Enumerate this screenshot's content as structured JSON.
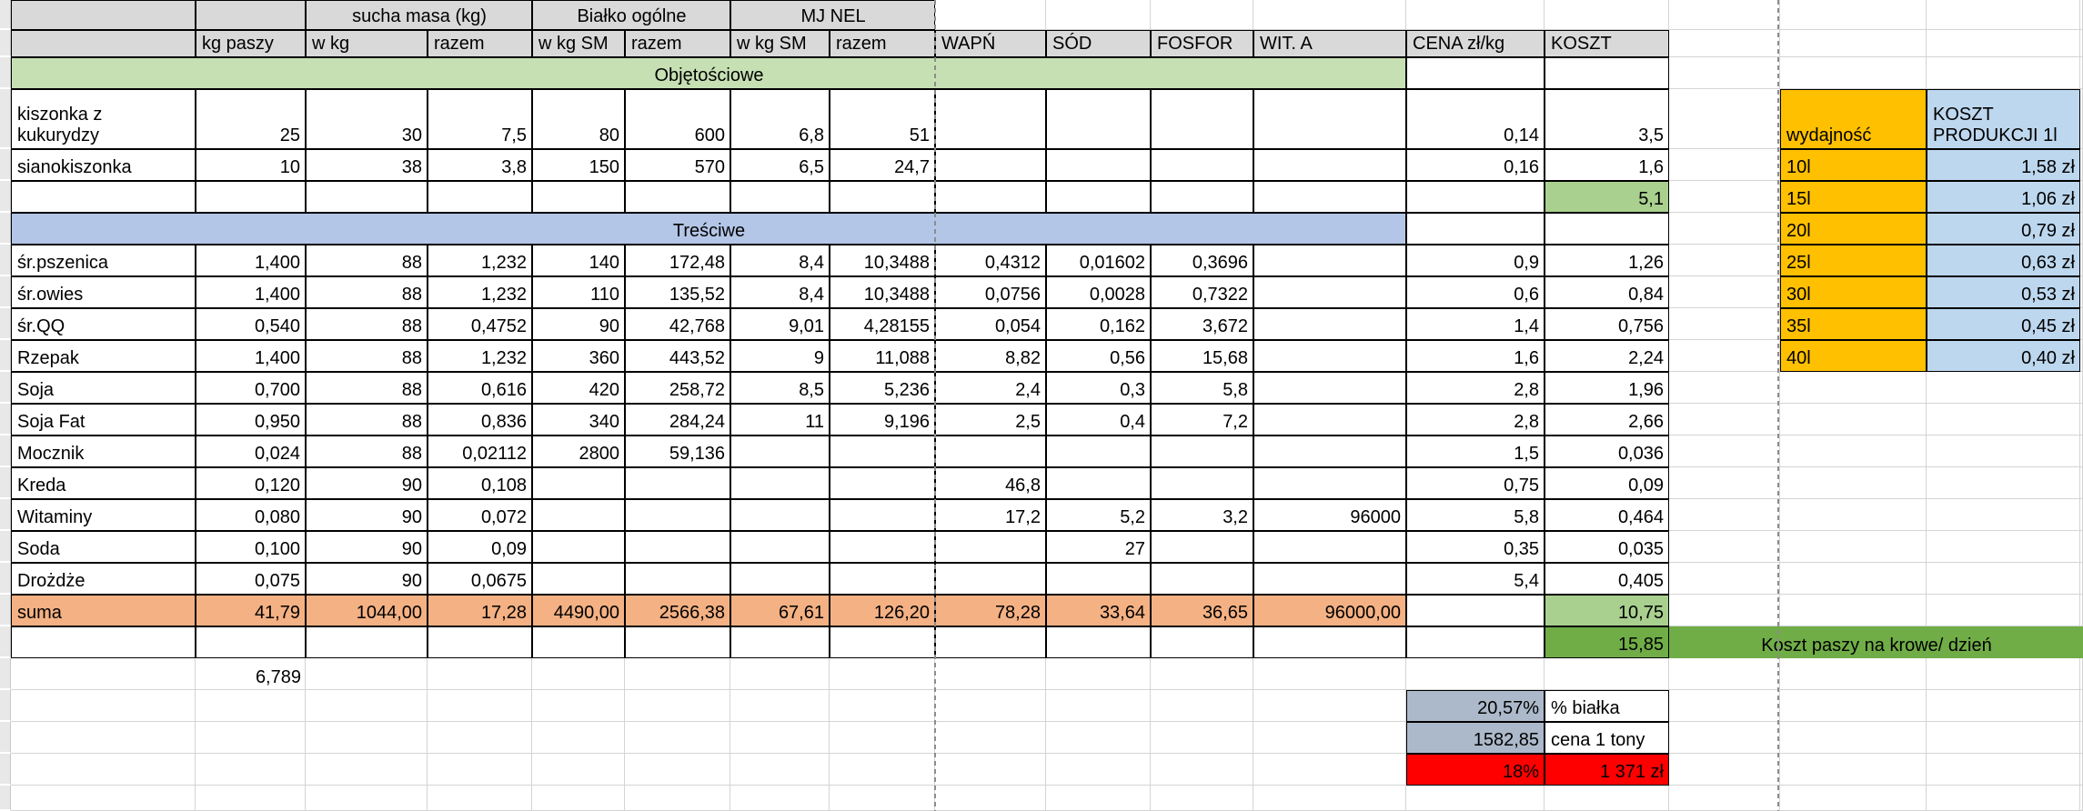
{
  "colors": {
    "header_bg": "#d9d9d9",
    "banner_green": "#c6e0b4",
    "banner_blue": "#b4c6e7",
    "suma_orange": "#f4b183",
    "light_green": "#a9d08e",
    "dark_green": "#70ad47",
    "gold": "#ffc000",
    "light_blue": "#bdd7ee",
    "blue_gray": "#acb9ca",
    "red": "#ff0000",
    "gridline": "#d4d4d4",
    "border": "#000000",
    "gutter": "#e8e8e8",
    "pagebreak": "#8c8c8c"
  },
  "header": {
    "groups": [
      {
        "label": "sucha masa (kg)"
      },
      {
        "label": "Białko ogólne"
      },
      {
        "label": "MJ NEL"
      }
    ],
    "columns": [
      "kg paszy",
      "w kg",
      "razem",
      "w kg SM",
      "razem",
      "w kg SM",
      "razem",
      "WAPŃ",
      "SÓD",
      "FOSFOR",
      "WIT. A",
      "CENA zł/kg",
      "KOSZT"
    ]
  },
  "rows": [
    {
      "type": "banner",
      "color": "green",
      "label": "Objętościowe"
    },
    {
      "type": "data",
      "cells": [
        "kiszonka z\nkukurydzy",
        "25",
        "30",
        "7,5",
        "80",
        "600",
        "6,8",
        "51",
        "",
        "",
        "",
        "",
        "0,14",
        "3,5"
      ]
    },
    {
      "type": "data",
      "cells": [
        "sianokiszonka",
        "10",
        "38",
        "3,8",
        "150",
        "570",
        "6,5",
        "24,7",
        "",
        "",
        "",
        "",
        "0,16",
        "1,6"
      ]
    },
    {
      "type": "data",
      "koszt": "light",
      "cells": [
        "",
        "",
        "",
        "",
        "",
        "",
        "",
        "",
        "",
        "",
        "",
        "",
        "",
        "5,1"
      ]
    },
    {
      "type": "banner",
      "color": "blue",
      "label": "Treściwe"
    },
    {
      "type": "data",
      "cells": [
        "śr.pszenica",
        "1,400",
        "88",
        "1,232",
        "140",
        "172,48",
        "8,4",
        "10,3488",
        "0,4312",
        "0,01602",
        "0,3696",
        "",
        "0,9",
        "1,26"
      ]
    },
    {
      "type": "data",
      "cells": [
        "śr.owies",
        "1,400",
        "88",
        "1,232",
        "110",
        "135,52",
        "8,4",
        "10,3488",
        "0,0756",
        "0,0028",
        "0,7322",
        "",
        "0,6",
        "0,84"
      ]
    },
    {
      "type": "data",
      "cells": [
        "śr.QQ",
        "0,540",
        "88",
        "0,4752",
        "90",
        "42,768",
        "9,01",
        "4,28155",
        "0,054",
        "0,162",
        "3,672",
        "",
        "1,4",
        "0,756"
      ]
    },
    {
      "type": "data",
      "cells": [
        "Rzepak",
        "1,400",
        "88",
        "1,232",
        "360",
        "443,52",
        "9",
        "11,088",
        "8,82",
        "0,56",
        "15,68",
        "",
        "1,6",
        "2,24"
      ]
    },
    {
      "type": "data",
      "cells": [
        "Soja",
        "0,700",
        "88",
        "0,616",
        "420",
        "258,72",
        "8,5",
        "5,236",
        "2,4",
        "0,3",
        "5,8",
        "",
        "2,8",
        "1,96"
      ]
    },
    {
      "type": "data",
      "cells": [
        "Soja Fat",
        "0,950",
        "88",
        "0,836",
        "340",
        "284,24",
        "11",
        "9,196",
        "2,5",
        "0,4",
        "7,2",
        "",
        "2,8",
        "2,66"
      ]
    },
    {
      "type": "data",
      "cells": [
        "Mocznik",
        "0,024",
        "88",
        "0,02112",
        "2800",
        "59,136",
        "",
        "",
        "",
        "",
        "",
        "",
        "1,5",
        "0,036"
      ]
    },
    {
      "type": "data",
      "cells": [
        "Kreda",
        "0,120",
        "90",
        "0,108",
        "",
        "",
        "",
        "",
        "46,8",
        "",
        "",
        "",
        "0,75",
        "0,09"
      ]
    },
    {
      "type": "data",
      "cells": [
        "Witaminy",
        "0,080",
        "90",
        "0,072",
        "",
        "",
        "",
        "",
        "17,2",
        "5,2",
        "3,2",
        "96000",
        "5,8",
        "0,464"
      ]
    },
    {
      "type": "data",
      "cells": [
        "Soda",
        "0,100",
        "90",
        "0,09",
        "",
        "",
        "",
        "",
        "",
        "27",
        "",
        "",
        "0,35",
        "0,035"
      ]
    },
    {
      "type": "data",
      "cells": [
        "Drożdże",
        "0,075",
        "90",
        "0,0675",
        "",
        "",
        "",
        "",
        "",
        "",
        "",
        "",
        "5,4",
        "0,405"
      ]
    },
    {
      "type": "suma",
      "koszt": "light",
      "cells": [
        "suma",
        "41,79",
        "1044,00",
        "17,28",
        "4490,00",
        "2566,38",
        "67,61",
        "126,20",
        "78,28",
        "33,64",
        "36,65",
        "96000,00",
        "",
        "10,75"
      ]
    },
    {
      "type": "data",
      "koszt": "dark",
      "note": "Koszt paszy na krowe/ dzień",
      "cells": [
        "",
        "",
        "",
        "",
        "",
        "",
        "",
        "",
        "",
        "",
        "",
        "",
        "",
        "15,85"
      ]
    }
  ],
  "yield": {
    "header": [
      "wydajność",
      "KOSZT\nPRODUKCJI 1l"
    ],
    "rows": [
      [
        "10l",
        "1,58 zł"
      ],
      [
        "15l",
        "1,06 zł"
      ],
      [
        "20l",
        "0,79 zł"
      ],
      [
        "25l",
        "0,63 zł"
      ],
      [
        "30l",
        "0,53 zł"
      ],
      [
        "35l",
        "0,45 zł"
      ],
      [
        "40l",
        "0,40 zł"
      ]
    ]
  },
  "extras": {
    "kg_paszy_total": "6,789"
  },
  "summary": [
    {
      "value": "20,57%",
      "label": "% białka",
      "color": "bluegray"
    },
    {
      "value": "1582,85",
      "label": "cena 1 tony",
      "color": "bluegray"
    },
    {
      "value": "18%",
      "label": "1 371 zł",
      "color": "red"
    }
  ]
}
